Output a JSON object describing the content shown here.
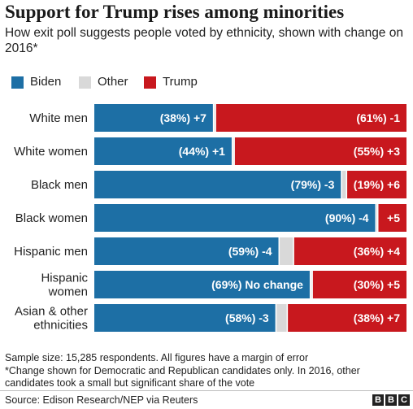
{
  "chart_data": {
    "type": "bar",
    "stacked": true,
    "orientation": "horizontal",
    "title": "Support for Trump rises among minorities",
    "subtitle": "How exit poll suggests people voted by ethnicity, shown with change on 2016*",
    "legend": {
      "placement": "top-left",
      "entries": [
        {
          "name": "Biden",
          "color": "#1d6fa5"
        },
        {
          "name": "Other",
          "color": "#d9d9d9"
        },
        {
          "name": "Trump",
          "color": "#c8181e"
        }
      ]
    },
    "categories": [
      {
        "label": [
          "White men"
        ],
        "biden": 38,
        "trump": 61,
        "biden_label": "(38%) +7",
        "trump_label": "(61%) -1"
      },
      {
        "label": [
          "White women"
        ],
        "biden": 44,
        "trump": 55,
        "biden_label": "(44%) +1",
        "trump_label": "(55%) +3"
      },
      {
        "label": [
          "Black men"
        ],
        "biden": 79,
        "trump": 19,
        "biden_label": "(79%) -3",
        "trump_label": "(19%) +6"
      },
      {
        "label": [
          "Black women"
        ],
        "biden": 90,
        "trump": 9,
        "biden_label": "(90%) -4",
        "trump_label": "+5"
      },
      {
        "label": [
          "Hispanic men"
        ],
        "biden": 59,
        "trump": 36,
        "biden_label": "(59%) -4",
        "trump_label": "(36%) +4"
      },
      {
        "label": [
          "Hispanic",
          "women"
        ],
        "biden": 69,
        "trump": 30,
        "biden_label": "(69%) No change",
        "trump_label": "(30%) +5"
      },
      {
        "label": [
          "Asian & other",
          "ethnicities"
        ],
        "biden": 58,
        "trump": 38,
        "biden_label": "(58%) -3",
        "trump_label": "(38%) +7"
      }
    ],
    "xlim": [
      0,
      100
    ],
    "grid": false
  },
  "footnote": {
    "sample": "Sample size: 15,285 respondents. All figures have a margin of error",
    "change_note": "*Change shown for Democratic and Republican candidates only. In 2016, other candidates took a small but significant share of the vote"
  },
  "source": "Source: Edison Research/NEP via Reuters",
  "brand": [
    "B",
    "B",
    "C"
  ],
  "colors": {
    "biden": "#1d6fa5",
    "other": "#d9d9d9",
    "trump": "#c8181e",
    "bar_label": "#ffffff"
  }
}
